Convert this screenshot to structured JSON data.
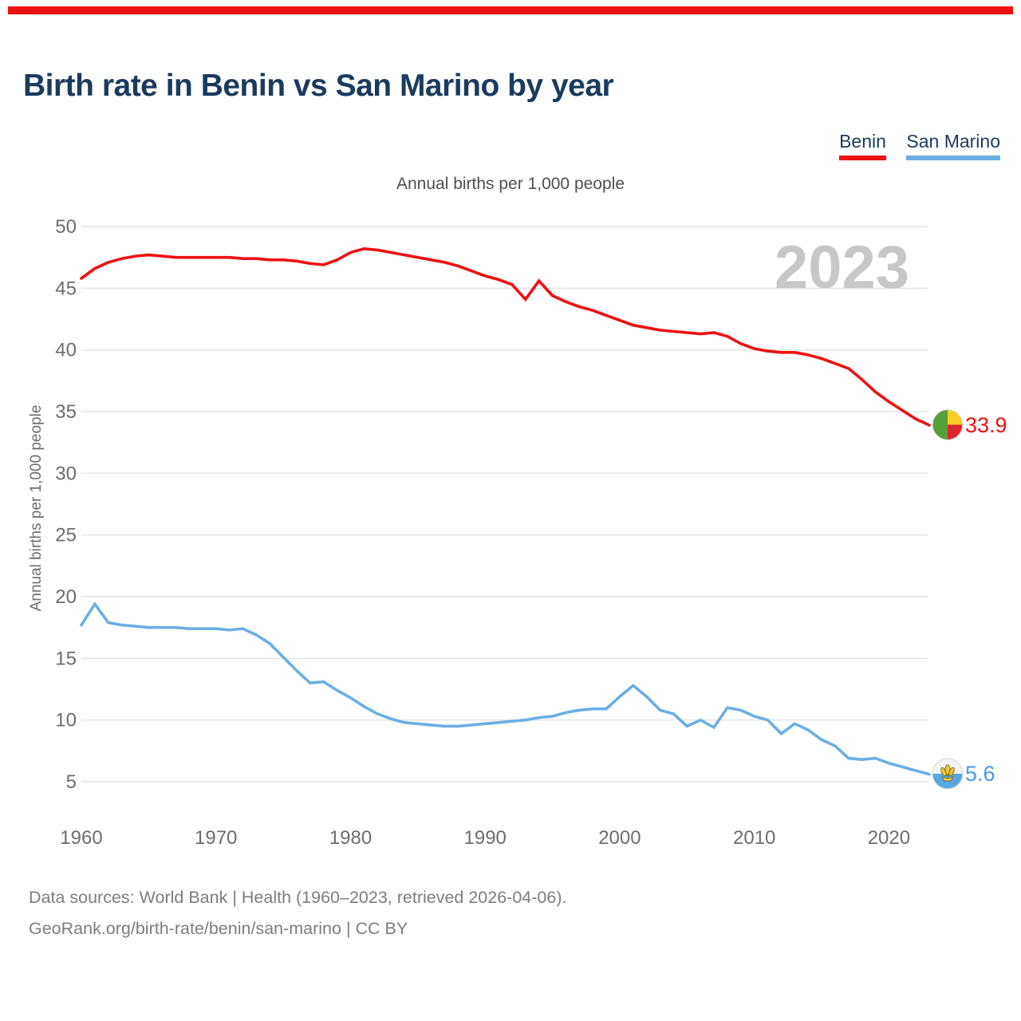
{
  "page": {
    "accent_color": "#ee1111"
  },
  "footer": {
    "line1": "Data sources: World Bank | Health (1960–2023, retrieved 2026-04-06).",
    "line2": "GeoRank.org/birth-rate/benin/san-marino | CC BY"
  },
  "chart_data": {
    "type": "line",
    "title": "Birth rate in Benin vs San Marino by year",
    "subtitle": "Annual births per 1,000 people",
    "ylabel": "Annual births per 1,000 people",
    "xlabel": "",
    "watermark": "2023",
    "grid": "horizontal",
    "legend_position": "top-right",
    "ylim": [
      5,
      50
    ],
    "xlim": [
      1960,
      2023
    ],
    "yticks": [
      5,
      10,
      15,
      20,
      25,
      30,
      35,
      40,
      45,
      50
    ],
    "xticks": [
      1960,
      1970,
      1980,
      1990,
      2000,
      2010,
      2020
    ],
    "x": [
      1960,
      1961,
      1962,
      1963,
      1964,
      1965,
      1966,
      1967,
      1968,
      1969,
      1970,
      1971,
      1972,
      1973,
      1974,
      1975,
      1976,
      1977,
      1978,
      1979,
      1980,
      1981,
      1982,
      1983,
      1984,
      1985,
      1986,
      1987,
      1988,
      1989,
      1990,
      1991,
      1992,
      1993,
      1994,
      1995,
      1996,
      1997,
      1998,
      1999,
      2000,
      2001,
      2002,
      2003,
      2004,
      2005,
      2006,
      2007,
      2008,
      2009,
      2010,
      2011,
      2012,
      2013,
      2014,
      2015,
      2016,
      2017,
      2018,
      2019,
      2020,
      2021,
      2022,
      2023
    ],
    "series": [
      {
        "name": "Benin",
        "color": "#ee1111",
        "values": [
          45.8,
          46.6,
          47.1,
          47.4,
          47.6,
          47.7,
          47.6,
          47.5,
          47.5,
          47.5,
          47.5,
          47.5,
          47.4,
          47.4,
          47.3,
          47.3,
          47.2,
          47.0,
          46.9,
          47.3,
          47.9,
          48.2,
          48.1,
          47.9,
          47.7,
          47.5,
          47.3,
          47.1,
          46.8,
          46.4,
          46.0,
          45.7,
          45.3,
          44.1,
          45.6,
          44.4,
          43.9,
          43.5,
          43.2,
          42.8,
          42.4,
          42.0,
          41.8,
          41.6,
          41.5,
          41.4,
          41.3,
          41.4,
          41.1,
          40.5,
          40.1,
          39.9,
          39.8,
          39.8,
          39.6,
          39.3,
          38.9,
          38.5,
          37.6,
          36.6,
          35.8,
          35.1,
          34.4,
          33.9
        ]
      },
      {
        "name": "San Marino",
        "color": "#6caee4",
        "values": [
          17.7,
          19.4,
          17.9,
          17.7,
          17.6,
          17.5,
          17.5,
          17.5,
          17.4,
          17.4,
          17.4,
          17.3,
          17.4,
          16.9,
          16.2,
          15.1,
          14.0,
          13.0,
          13.1,
          12.4,
          11.8,
          11.1,
          10.5,
          10.1,
          9.8,
          9.7,
          9.6,
          9.5,
          9.5,
          9.6,
          9.7,
          9.8,
          9.9,
          10.0,
          10.2,
          10.3,
          10.6,
          10.8,
          10.9,
          10.9,
          11.9,
          12.8,
          11.9,
          10.8,
          10.5,
          9.5,
          10.0,
          9.4,
          11.0,
          10.8,
          10.3,
          10.0,
          8.9,
          9.7,
          9.2,
          8.4,
          7.9,
          6.9,
          6.8,
          6.9,
          6.5,
          6.2,
          5.9,
          5.6
        ]
      }
    ],
    "end_labels": [
      {
        "series": "Benin",
        "text": "33.9",
        "value": 33.9,
        "color": "#ee1111"
      },
      {
        "series": "San Marino",
        "text": "5.6",
        "value": 5.6,
        "color": "#4d99e6"
      }
    ]
  }
}
